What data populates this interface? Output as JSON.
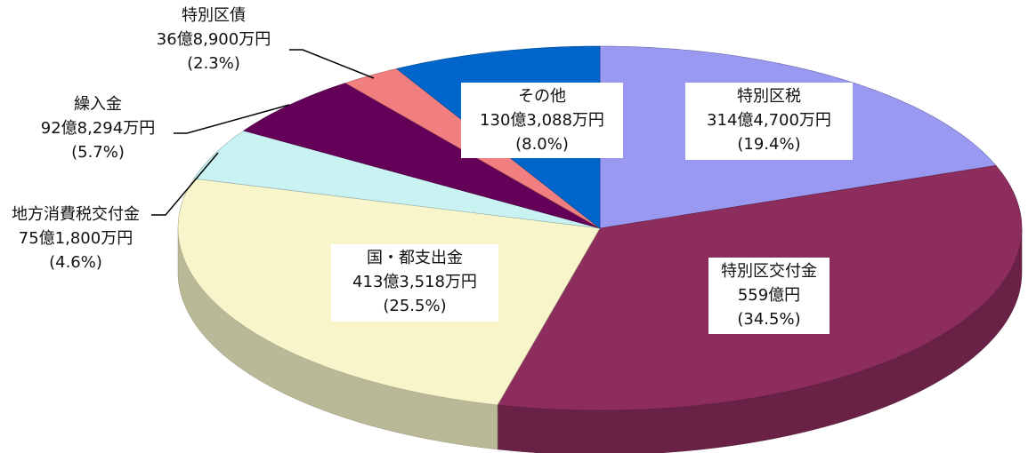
{
  "chart_data": {
    "type": "pie",
    "categories": [
      "特別区税",
      "特別区交付金",
      "国・都支出金",
      "地方消費税交付金",
      "繰入金",
      "特別区債",
      "その他"
    ],
    "amount_labels": [
      "314億4,700万円",
      "559億円",
      "413億3,518万円",
      "75億1,800万円",
      "92億8,294万円",
      "36億8,900万円",
      "130億3,088万円"
    ],
    "values": [
      19.4,
      34.5,
      25.5,
      4.6,
      5.7,
      2.3,
      8.0
    ],
    "value_labels": [
      "(19.4%)",
      "(34.5%)",
      "(25.5%)",
      "(4.6%)",
      "(5.7%)",
      "(2.3%)",
      "(8.0%)"
    ],
    "colors": [
      "#9a99f2",
      "#8c2d5d",
      "#f7f5c9",
      "#c9f3f3",
      "#640057",
      "#f27f7f",
      "#0066cc"
    ]
  }
}
